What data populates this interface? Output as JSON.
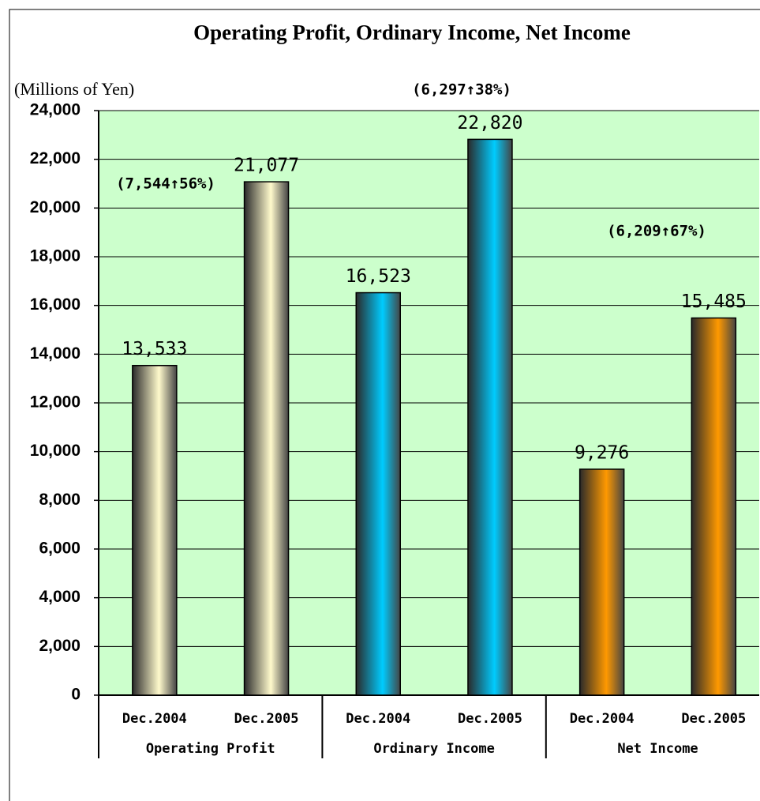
{
  "chart_data": {
    "type": "bar",
    "title": "Operating Profit, Ordinary Income, Net Income",
    "y_label": "(Millions of Yen)",
    "ylim": [
      0,
      24000
    ],
    "yticks": [
      0,
      {
        "value": 2000,
        "label": "2,000"
      },
      {
        "value": 4000,
        "label": "4,000"
      },
      {
        "value": 6000,
        "label": "6,000"
      },
      {
        "value": 8000,
        "label": "8,000"
      },
      {
        "value": 10000,
        "label": "10,000"
      },
      {
        "value": 12000,
        "label": "12,000"
      },
      {
        "value": 14000,
        "label": "14,000"
      },
      {
        "value": 16000,
        "label": "16,000"
      },
      {
        "value": 18000,
        "label": "18,000"
      },
      {
        "value": 20000,
        "label": "20,000"
      },
      {
        "value": 22000,
        "label": "22,000"
      },
      {
        "value": 24000,
        "label": "24,000"
      }
    ],
    "grid": true,
    "background": "#ccffcc",
    "groups": [
      {
        "name": "Operating Profit",
        "color": "#fffacc",
        "categories": [
          "Dec.2004",
          "Dec.2005"
        ],
        "values": [
          13533,
          21077
        ],
        "value_labels": [
          "13,533",
          "21,077"
        ],
        "annotation": "(7,544↑56%)"
      },
      {
        "name": "Ordinary Income",
        "color": "#00ccff",
        "categories": [
          "Dec.2004",
          "Dec.2005"
        ],
        "values": [
          16523,
          22820
        ],
        "value_labels": [
          "16,523",
          "22,820"
        ],
        "annotation": "(6,297↑38%)"
      },
      {
        "name": "Net Income",
        "color": "#ff9900",
        "categories": [
          "Dec.2004",
          "Dec.2005"
        ],
        "values": [
          9276,
          15485
        ],
        "value_labels": [
          "9,276",
          "15,485"
        ],
        "annotation": "(6,209↑67%)"
      }
    ]
  }
}
